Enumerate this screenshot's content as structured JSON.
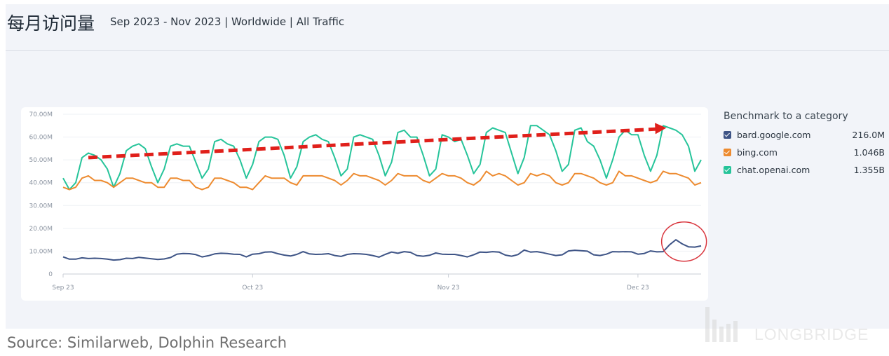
{
  "header": {
    "title": "每月访问量",
    "subtitle": "Sep 2023 - Nov 2023 | Worldwide | All Traffic"
  },
  "legend": {
    "title": "Benchmark to a category",
    "items": [
      {
        "name": "bard.google.com",
        "value": "216.0M",
        "color": "#3e5486"
      },
      {
        "name": "bing.com",
        "value": "1.046B",
        "color": "#ed8b30"
      },
      {
        "name": "chat.openai.com",
        "value": "1.355B",
        "color": "#26c49a"
      }
    ]
  },
  "source": "Source: Similarweb, Dolphin Research",
  "watermark": "LONGBRIDGE",
  "annotation_colors": {
    "arrow": "#e0201b",
    "circle": "#d9363e"
  },
  "chart_data": {
    "type": "line",
    "title": "每月访问量",
    "xlabel": "",
    "ylabel": "",
    "ylim": [
      0,
      70
    ],
    "y_unit": "M",
    "y_ticks": [
      "0",
      "10.00M",
      "20.00M",
      "30.00M",
      "40.00M",
      "50.00M",
      "60.00M",
      "70.00M"
    ],
    "x_ticks": [
      {
        "day": 1,
        "label": "Sep 23"
      },
      {
        "day": 31,
        "label": "Oct 23"
      },
      {
        "day": 62,
        "label": "Nov 23"
      },
      {
        "day": 92,
        "label": "Dec 23"
      }
    ],
    "x_range": [
      1,
      102
    ],
    "series": [
      {
        "name": "chat.openai.com",
        "color": "#26c49a",
        "values": [
          42,
          37,
          40,
          51,
          53,
          52,
          50,
          46,
          38,
          44,
          54,
          56,
          57,
          55,
          47,
          40,
          46,
          56,
          57,
          56,
          56,
          49,
          42,
          46,
          58,
          59,
          57,
          56,
          50,
          42,
          48,
          58,
          60,
          60,
          59,
          52,
          42,
          47,
          58,
          60,
          61,
          59,
          58,
          51,
          43,
          46,
          60,
          61,
          60,
          59,
          52,
          43,
          49,
          62,
          63,
          60,
          60,
          52,
          43,
          46,
          61,
          60,
          58,
          59,
          52,
          44,
          48,
          62,
          64,
          63,
          62,
          53,
          44,
          51,
          65,
          65,
          63,
          61,
          54,
          45,
          48,
          63,
          64,
          58,
          56,
          50,
          42,
          50,
          60,
          63,
          61,
          61,
          52,
          45,
          52,
          65,
          64,
          63,
          61,
          56,
          45,
          50
        ]
      },
      {
        "name": "bing.com",
        "color": "#ed8b30",
        "values": [
          38,
          37,
          38,
          42,
          43,
          41,
          41,
          40,
          38,
          40,
          42,
          42,
          41,
          40,
          40,
          38,
          38,
          42,
          42,
          41,
          41,
          38,
          37,
          38,
          42,
          42,
          41,
          40,
          38,
          38,
          37,
          40,
          43,
          42,
          42,
          42,
          40,
          39,
          43,
          43,
          43,
          43,
          42,
          41,
          39,
          41,
          44,
          43,
          43,
          42,
          41,
          39,
          41,
          44,
          43,
          43,
          43,
          41,
          40,
          42,
          44,
          43,
          43,
          42,
          40,
          39,
          41,
          45,
          43,
          44,
          43,
          41,
          39,
          40,
          44,
          43,
          44,
          43,
          40,
          39,
          40,
          44,
          44,
          43,
          42,
          40,
          39,
          40,
          45,
          43,
          43,
          42,
          41,
          40,
          41,
          45,
          44,
          44,
          43,
          42,
          39,
          40
        ]
      },
      {
        "name": "bard.google.com",
        "color": "#3e5486",
        "values": [
          7.5,
          6.5,
          6.5,
          7.1,
          6.8,
          6.9,
          6.8,
          6.5,
          6.1,
          6.3,
          6.9,
          6.8,
          7.3,
          7,
          6.7,
          6.4,
          6.6,
          7.2,
          8.7,
          9,
          8.9,
          8.5,
          7.5,
          8,
          8.8,
          9.1,
          9,
          8.7,
          8.6,
          7.5,
          8.7,
          8.9,
          9.6,
          9.7,
          8.9,
          8.3,
          7.9,
          8.6,
          9.8,
          8.8,
          8.6,
          8.7,
          8.9,
          8.1,
          7.7,
          8.6,
          8.9,
          8.8,
          8.6,
          8.1,
          7.4,
          8.6,
          9.6,
          9.1,
          9.8,
          9.5,
          8.1,
          7.8,
          8.2,
          9.2,
          8.7,
          8.6,
          8.6,
          8.1,
          7.5,
          8.4,
          9.6,
          9.5,
          9.8,
          9.6,
          8.3,
          7.8,
          8.5,
          10.5,
          9.6,
          9.8,
          9.3,
          8.7,
          8.1,
          8.4,
          10.1,
          10.4,
          10.2,
          10,
          8.4,
          8.1,
          8.7,
          9.8,
          9.7,
          9.8,
          9.7,
          8.7,
          9,
          10.1,
          9.7,
          9.8,
          12.8,
          15,
          13.2,
          11.9,
          11.8,
          12.3
        ]
      }
    ]
  }
}
